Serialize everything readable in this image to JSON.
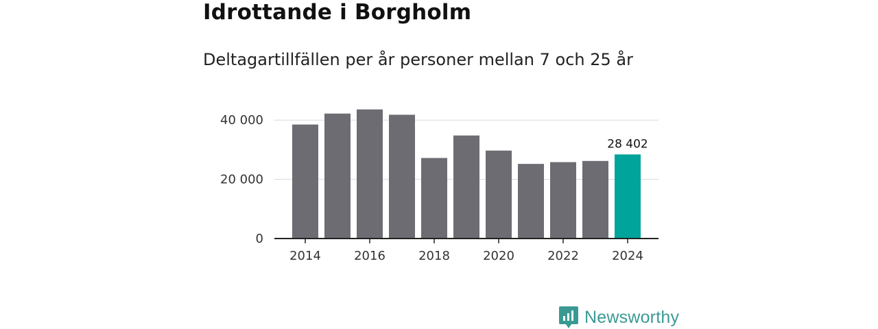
{
  "title": "Idrottande i Borgholm",
  "subtitle": "Deltagartillfällen per år personer mellan 7 och 25 år",
  "chart_data": {
    "type": "bar",
    "categories": [
      "2014",
      "2015",
      "2016",
      "2017",
      "2018",
      "2019",
      "2020",
      "2021",
      "2022",
      "2023",
      "2024"
    ],
    "values": [
      38500,
      42200,
      43600,
      41800,
      27200,
      34800,
      29700,
      25200,
      25800,
      26200,
      28402
    ],
    "x_tick_labels": [
      "2014",
      "2016",
      "2018",
      "2020",
      "2022",
      "2024"
    ],
    "y_ticks": [
      0,
      20000,
      40000
    ],
    "y_tick_labels": [
      "0",
      "20 000",
      "40 000"
    ],
    "ylim": [
      0,
      45000
    ],
    "highlight_index": 10,
    "highlight_label": "28 402",
    "colors": {
      "bar": "#6d6c73",
      "highlight": "#00a49a",
      "grid": "#d9d9d9",
      "axis": "#222222"
    },
    "grid": true
  },
  "logo": {
    "text": "Newsworthy",
    "icon": "bar-chart-bubble-icon",
    "color": "#3a9a93"
  }
}
